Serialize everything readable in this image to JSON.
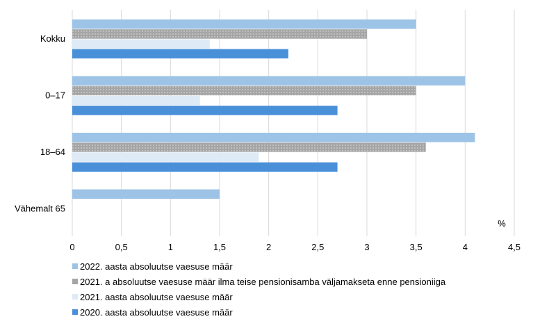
{
  "chart_data": {
    "type": "bar",
    "orientation": "horizontal",
    "categories": [
      "Kokku",
      "0–17",
      "18–64",
      "Vähemalt 65"
    ],
    "series": [
      {
        "name": "2022. aasta absoluutse vaesuse määr",
        "values": [
          3.5,
          4.0,
          4.1,
          1.5
        ],
        "color": "#9dc3e6"
      },
      {
        "name": "2021. a absoluutse vaesuse määr ilma teise pensionisamba väljamakseta enne pensioniiga",
        "values": [
          3.0,
          3.5,
          3.6,
          null
        ],
        "color": "#a5a5a5",
        "pattern": "dotted"
      },
      {
        "name": "2021. aasta absoluutse vaesuse määr",
        "values": [
          1.4,
          1.3,
          1.9,
          null
        ],
        "color": "#deebf7"
      },
      {
        "name": "2020. aasta absoluutse vaesuse määr",
        "values": [
          2.2,
          2.7,
          2.7,
          null
        ],
        "color": "#4a90d9"
      }
    ],
    "xlabel": "%",
    "xlim": [
      0,
      4.5
    ],
    "xticks": [
      "0",
      "0,5",
      "1",
      "1,5",
      "2",
      "2,5",
      "3",
      "3,5",
      "4",
      "4,5"
    ],
    "grid": true,
    "legend": "bottom"
  }
}
